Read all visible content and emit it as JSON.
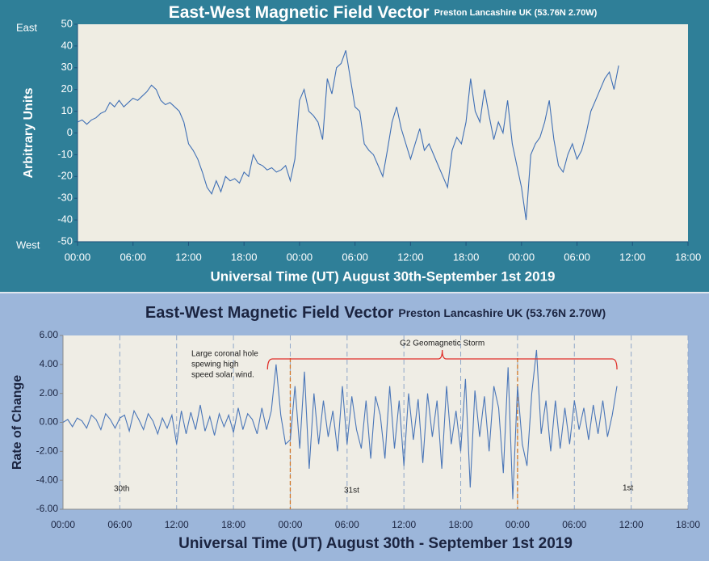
{
  "chart_data": [
    {
      "type": "line",
      "title": "East-West Magnetic Field Vector",
      "subtitle": "Preston Lancashire UK (53.76N 2.70W)",
      "x_label": "Universal Time (UT) August 30th-September 1st 2019",
      "y_label": "Arbitrary Units",
      "y_side_labels": [
        {
          "value": 50,
          "label": "East"
        },
        {
          "value": -50,
          "label": "West"
        }
      ],
      "xlim": [
        0,
        66
      ],
      "ylim": [
        -50,
        50
      ],
      "xticks": [
        {
          "value": 0,
          "label": "00:00"
        },
        {
          "value": 6,
          "label": "06:00"
        },
        {
          "value": 12,
          "label": "12:00"
        },
        {
          "value": 18,
          "label": "18:00"
        },
        {
          "value": 24,
          "label": "00:00"
        },
        {
          "value": 30,
          "label": "06:00"
        },
        {
          "value": 36,
          "label": "12:00"
        },
        {
          "value": 42,
          "label": "18:00"
        },
        {
          "value": 48,
          "label": "00:00"
        },
        {
          "value": 54,
          "label": "06:00"
        },
        {
          "value": 60,
          "label": "12:00"
        },
        {
          "value": 66,
          "label": "18:00"
        }
      ],
      "yticks": [
        50,
        40,
        30,
        20,
        10,
        0,
        -10,
        -20,
        -30,
        -40,
        -50
      ],
      "grid": false,
      "x": [
        0,
        0.5,
        1,
        1.5,
        2,
        2.5,
        3,
        3.5,
        4,
        4.5,
        5,
        5.5,
        6,
        6.5,
        7,
        7.5,
        8,
        8.5,
        9,
        9.5,
        10,
        10.5,
        11,
        11.5,
        12,
        12.5,
        13,
        13.5,
        14,
        14.5,
        15,
        15.5,
        16,
        16.5,
        17,
        17.5,
        18,
        18.5,
        19,
        19.5,
        20,
        20.5,
        21,
        21.5,
        22,
        22.5,
        23,
        23.5,
        24,
        24.5,
        25,
        25.5,
        26,
        26.5,
        27,
        27.5,
        28,
        28.5,
        29,
        29.5,
        30,
        30.5,
        31,
        31.5,
        32,
        32.5,
        33,
        33.5,
        34,
        34.5,
        35,
        35.5,
        36,
        36.5,
        37,
        37.5,
        38,
        38.5,
        39,
        39.5,
        40,
        40.5,
        41,
        41.5,
        42,
        42.5,
        43,
        43.5,
        44,
        44.5,
        45,
        45.5,
        46,
        46.5,
        47,
        47.5,
        48,
        48.5,
        49,
        49.5,
        50,
        50.5,
        51,
        51.5,
        52,
        52.5,
        53,
        53.5,
        54,
        54.5,
        55,
        55.5,
        56,
        56.5,
        57,
        57.5,
        58,
        58.5
      ],
      "series": [
        {
          "color": "#3f6fb5",
          "values": [
            5,
            6,
            4,
            6,
            7,
            9,
            10,
            14,
            12,
            15,
            12,
            14,
            16,
            15,
            17,
            19,
            22,
            20,
            15,
            13,
            14,
            12,
            10,
            5,
            -5,
            -8,
            -12,
            -18,
            -25,
            -28,
            -22,
            -27,
            -20,
            -22,
            -21,
            -23,
            -18,
            -20,
            -10,
            -14,
            -15,
            -17,
            -16,
            -18,
            -17,
            -15,
            -22,
            -12,
            15,
            20,
            10,
            8,
            5,
            -3,
            25,
            18,
            30,
            32,
            38,
            25,
            12,
            10,
            -5,
            -8,
            -10,
            -15,
            -20,
            -8,
            5,
            12,
            2,
            -5,
            -12,
            -5,
            2,
            -8,
            -5,
            -10,
            -15,
            -20,
            -25,
            -8,
            -2,
            -5,
            5,
            25,
            10,
            5,
            20,
            8,
            -3,
            5,
            0,
            15,
            -5,
            -15,
            -25,
            -40,
            -10,
            -5,
            -2,
            5,
            15,
            -3,
            -15,
            -18,
            -10,
            -5,
            -12,
            -8,
            0,
            10,
            15,
            20,
            25,
            28,
            20,
            31
          ]
        }
      ]
    },
    {
      "type": "line",
      "title": "East-West Magnetic Field Vector",
      "subtitle": "Preston Lancashire UK (53.76N 2.70W)",
      "x_label": "Universal Time (UT) August 30th - September 1st 2019",
      "y_label": "Rate of Change",
      "xlim": [
        0,
        66
      ],
      "ylim": [
        -6,
        6
      ],
      "xticks": [
        {
          "value": 0,
          "label": "00:00"
        },
        {
          "value": 6,
          "label": "06:00"
        },
        {
          "value": 12,
          "label": "12:00"
        },
        {
          "value": 18,
          "label": "18:00"
        },
        {
          "value": 24,
          "label": "00:00"
        },
        {
          "value": 30,
          "label": "06:00"
        },
        {
          "value": 36,
          "label": "12:00"
        },
        {
          "value": 42,
          "label": "18:00"
        },
        {
          "value": 48,
          "label": "00:00"
        },
        {
          "value": 54,
          "label": "06:00"
        },
        {
          "value": 60,
          "label": "12:00"
        },
        {
          "value": 66,
          "label": "18:00"
        }
      ],
      "yticks": [
        {
          "value": 6,
          "label": "6.00"
        },
        {
          "value": 4,
          "label": "4.00"
        },
        {
          "value": 2,
          "label": "2.00"
        },
        {
          "value": 0,
          "label": "0.00"
        },
        {
          "value": -2,
          "label": "-2.00"
        },
        {
          "value": -4,
          "label": "-4.00"
        },
        {
          "value": -6,
          "label": "-6.00"
        }
      ],
      "grid": true,
      "day_markers": [
        24,
        48
      ],
      "day_labels": [
        "30th",
        "31st",
        "1st"
      ],
      "annotation": [
        "Large coronal hole",
        "spewing high",
        "speed solar wind."
      ],
      "storm_label": "G2 Geomagnetic Storm",
      "storm_span": [
        21.6,
        58.5
      ],
      "x": [
        0,
        0.5,
        1,
        1.5,
        2,
        2.5,
        3,
        3.5,
        4,
        4.5,
        5,
        5.5,
        6,
        6.5,
        7,
        7.5,
        8,
        8.5,
        9,
        9.5,
        10,
        10.5,
        11,
        11.5,
        12,
        12.5,
        13,
        13.5,
        14,
        14.5,
        15,
        15.5,
        16,
        16.5,
        17,
        17.5,
        18,
        18.5,
        19,
        19.5,
        20,
        20.5,
        21,
        21.5,
        22,
        22.5,
        23,
        23.5,
        24,
        24.5,
        25,
        25.5,
        26,
        26.5,
        27,
        27.5,
        28,
        28.5,
        29,
        29.5,
        30,
        30.5,
        31,
        31.5,
        32,
        32.5,
        33,
        33.5,
        34,
        34.5,
        35,
        35.5,
        36,
        36.5,
        37,
        37.5,
        38,
        38.5,
        39,
        39.5,
        40,
        40.5,
        41,
        41.5,
        42,
        42.5,
        43,
        43.5,
        44,
        44.5,
        45,
        45.5,
        46,
        46.5,
        47,
        47.5,
        48,
        48.5,
        49,
        49.5,
        50,
        50.5,
        51,
        51.5,
        52,
        52.5,
        53,
        53.5,
        54,
        54.5,
        55,
        55.5,
        56,
        56.5,
        57,
        57.5,
        58,
        58.5
      ],
      "series": [
        {
          "color": "#4a76b8",
          "values": [
            0,
            0.2,
            -0.3,
            0.3,
            0.1,
            -0.4,
            0.5,
            0.2,
            -0.5,
            0.6,
            0.2,
            -0.4,
            0.3,
            0.5,
            -0.6,
            0.8,
            0.2,
            -0.5,
            0.6,
            0.1,
            -0.8,
            0.3,
            -0.4,
            0.5,
            -1.5,
            0.8,
            -0.8,
            0.7,
            -0.5,
            1.2,
            -0.6,
            0.4,
            -0.9,
            0.6,
            -0.3,
            0.5,
            -0.7,
            1.0,
            -0.5,
            0.6,
            0.2,
            -0.8,
            1.0,
            -0.5,
            0.8,
            4.0,
            0.5,
            -1.5,
            -1.2,
            2.5,
            -1.8,
            3.5,
            -3.2,
            2.0,
            -1.5,
            1.5,
            -1.0,
            0.8,
            -2.0,
            2.5,
            -1.5,
            1.8,
            -0.5,
            -1.8,
            1.5,
            -2.5,
            1.8,
            0.5,
            -2.5,
            2.5,
            -1.8,
            1.5,
            -3.0,
            2.0,
            -1.2,
            1.6,
            -2.8,
            2.0,
            -1.0,
            1.5,
            -3.2,
            2.5,
            -1.5,
            0.8,
            -2.0,
            3.0,
            -4.5,
            2.2,
            -1.0,
            1.8,
            -2.0,
            2.5,
            1.0,
            -3.5,
            3.8,
            -5.3,
            2.5,
            -1.5,
            -3.0,
            2.0,
            5.0,
            -0.8,
            1.5,
            -2.0,
            1.5,
            -1.8,
            1.0,
            -1.5,
            1.5,
            -0.5,
            1.0,
            -1.2,
            1.2,
            -0.8,
            1.5,
            -1.0,
            0.5,
            2.5
          ]
        }
      ]
    }
  ]
}
